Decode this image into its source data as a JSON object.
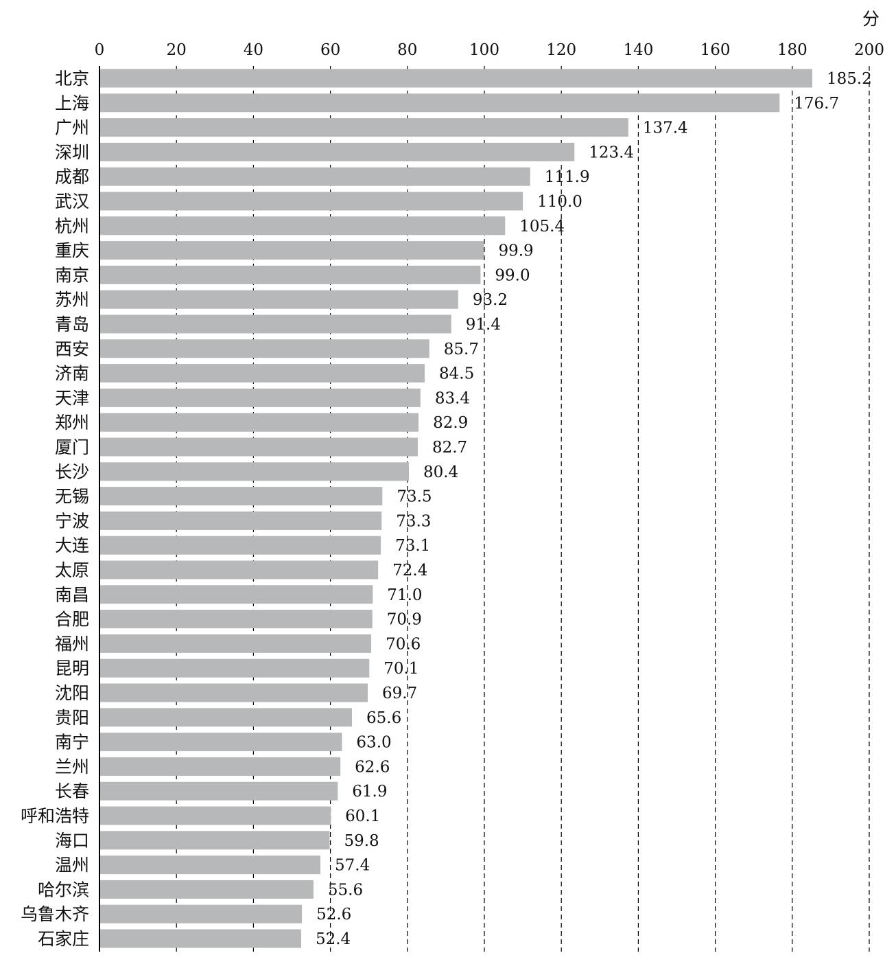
{
  "chart_data": {
    "type": "bar",
    "orientation": "horizontal",
    "unit": "分",
    "xlim": [
      0,
      200
    ],
    "x_ticks": [
      0,
      20,
      40,
      60,
      80,
      100,
      120,
      140,
      160,
      180,
      200
    ],
    "grid": "vertical dashed",
    "axis_position": "top",
    "categories": [
      "北京",
      "上海",
      "广州",
      "深圳",
      "成都",
      "武汉",
      "杭州",
      "重庆",
      "南京",
      "苏州",
      "青岛",
      "西安",
      "济南",
      "天津",
      "郑州",
      "厦门",
      "长沙",
      "无锡",
      "宁波",
      "大连",
      "太原",
      "南昌",
      "合肥",
      "福州",
      "昆明",
      "沈阳",
      "贵阳",
      "南宁",
      "兰州",
      "长春",
      "呼和浩特",
      "海口",
      "温州",
      "哈尔滨",
      "乌鲁木齐",
      "石家庄"
    ],
    "values": [
      185.2,
      176.7,
      137.4,
      123.4,
      111.9,
      110.0,
      105.4,
      99.9,
      99.0,
      93.2,
      91.4,
      85.7,
      84.5,
      83.4,
      82.9,
      82.7,
      80.4,
      73.5,
      73.3,
      73.1,
      72.4,
      71.0,
      70.9,
      70.6,
      70.1,
      69.7,
      65.6,
      63.0,
      62.6,
      61.9,
      60.1,
      59.8,
      57.4,
      55.6,
      52.6,
      52.4
    ],
    "value_labels": [
      "185.2",
      "176.7",
      "137.4",
      "123.4",
      "111.9",
      "110.0",
      "105.4",
      "99.9",
      "99.0",
      "93.2",
      "91.4",
      "85.7",
      "84.5",
      "83.4",
      "82.9",
      "82.7",
      "80.4",
      "73.5",
      "73.3",
      "73.1",
      "72.4",
      "71.0",
      "70.9",
      "70.6",
      "70.1",
      "69.7",
      "65.6",
      "63.0",
      "62.6",
      "61.9",
      "60.1",
      "59.8",
      "57.4",
      "55.6",
      "52.6",
      "52.4"
    ],
    "bar_color": "#b7b8ba",
    "grid_color": "#000000"
  }
}
